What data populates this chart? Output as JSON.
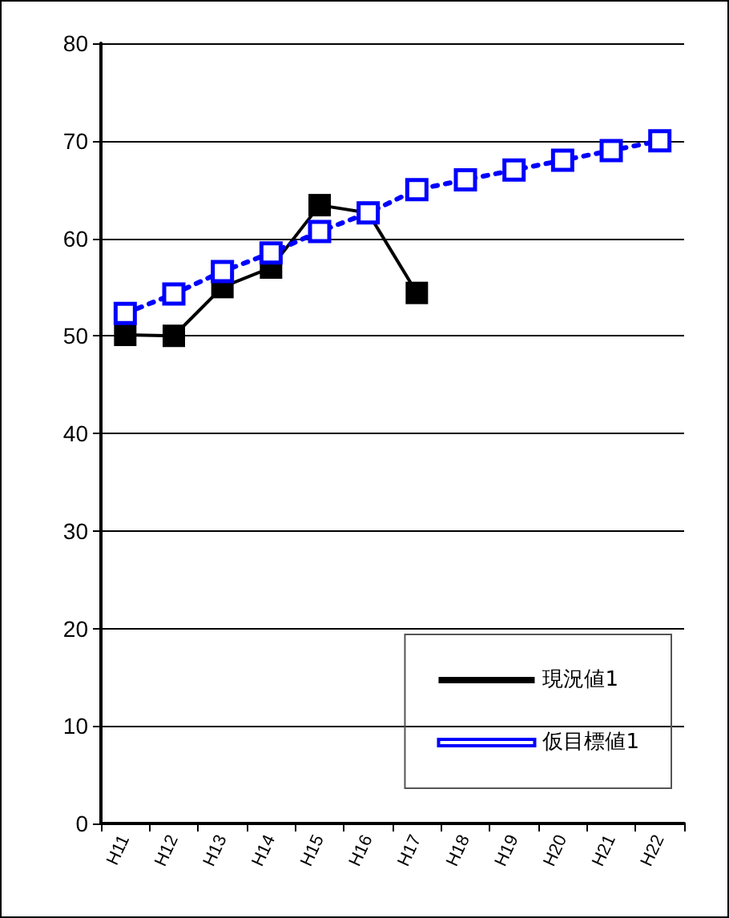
{
  "chart_data": {
    "type": "line",
    "categories": [
      "H11",
      "H12",
      "H13",
      "H14",
      "H15",
      "H16",
      "H17",
      "H18",
      "H19",
      "H20",
      "H21",
      "H22"
    ],
    "series": [
      {
        "name": "現況値1",
        "color": "#000000",
        "line_style": "solid",
        "marker": "square",
        "values": [
          50.1,
          50,
          55,
          57,
          63.4,
          62.6,
          54.4,
          null,
          null,
          null,
          null,
          null
        ]
      },
      {
        "name": "仮目標値1",
        "color": "#0000ff",
        "line_style": "dotted",
        "marker": "square",
        "values": [
          52.3,
          54.3,
          56.6,
          58.5,
          60.7,
          62.6,
          65,
          66,
          67,
          68,
          69,
          70
        ]
      }
    ],
    "ylim": [
      0,
      80
    ],
    "yticks": [
      0,
      10,
      20,
      30,
      40,
      50,
      60,
      70,
      80
    ],
    "grid": "y",
    "legend": "bottom right"
  }
}
